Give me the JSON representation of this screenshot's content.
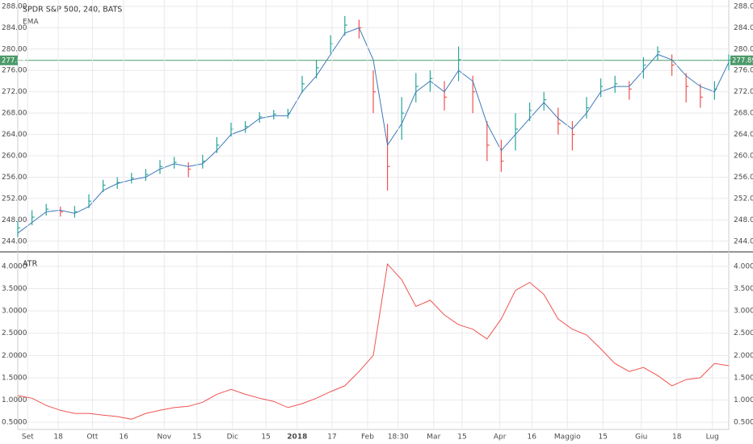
{
  "chart_data": [
    {
      "type": "ohlc",
      "title": "SPDR S&P 500, 240, BATS",
      "x": [
        0,
        2,
        4,
        6,
        8,
        10,
        12,
        14,
        16,
        18,
        20,
        22,
        24,
        26,
        28,
        30,
        32,
        34,
        36,
        38,
        40,
        42,
        44,
        46,
        48,
        50,
        52,
        54,
        56,
        58,
        60,
        62,
        64,
        66,
        68,
        70,
        72,
        74,
        76,
        78,
        80,
        82,
        84,
        86,
        88,
        90,
        92,
        94,
        96,
        98,
        100
      ],
      "bars": {
        "up_color": "#26a69a",
        "down_color": "#ef5350",
        "close": [
          246.5,
          248.5,
          250,
          249.5,
          249.5,
          251.5,
          254.5,
          255,
          255.8,
          256.5,
          258,
          258.8,
          257.5,
          259,
          262,
          265,
          265.5,
          267.3,
          267.8,
          268,
          273.5,
          276.5,
          281,
          284.5,
          284,
          272,
          258,
          268,
          273,
          274.5,
          271,
          278,
          272,
          262,
          259,
          265,
          268.5,
          270.5,
          266,
          264,
          269,
          273,
          273.5,
          272.5,
          277,
          279.5,
          277,
          273,
          271,
          272.5,
          277.9
        ],
        "high": [
          247.8,
          249.8,
          251,
          250.5,
          250.6,
          252.8,
          255.5,
          256,
          256.8,
          257.5,
          259.2,
          259.8,
          258.8,
          260.2,
          263.5,
          266.2,
          266.5,
          268.2,
          268.6,
          268.8,
          275,
          278,
          282.6,
          286.2,
          285.5,
          276,
          266,
          271,
          275.5,
          276,
          274,
          280.5,
          275,
          266.5,
          263,
          268,
          270,
          272,
          269,
          266.5,
          271,
          274.5,
          275,
          274,
          278.5,
          280.5,
          279,
          275.5,
          273.5,
          274,
          279
        ],
        "low": [
          244.8,
          247,
          248.8,
          248.6,
          248.4,
          250.2,
          253.2,
          253.8,
          254.8,
          255.3,
          256.6,
          257.6,
          256,
          257.6,
          260.5,
          263.6,
          264.3,
          266.2,
          266.8,
          267,
          271.8,
          274.5,
          279.2,
          282.5,
          282,
          268,
          253.5,
          263,
          270,
          272,
          268.5,
          274,
          268,
          259,
          257,
          261,
          266.5,
          268.5,
          264,
          261,
          267,
          271,
          271.8,
          270.5,
          274.5,
          277.8,
          275,
          270,
          269,
          270.5,
          276
        ]
      },
      "series": [
        {
          "name": "EMA",
          "color": "#3d7ab8",
          "values": [
            245.5,
            247.5,
            249.5,
            249.8,
            249.2,
            250.5,
            253.5,
            254.8,
            255.5,
            256,
            257.5,
            258.5,
            258,
            258.5,
            261,
            264,
            265,
            267,
            267.5,
            267.5,
            272,
            275,
            279,
            283,
            284,
            278,
            262,
            266,
            272,
            274,
            272,
            276,
            274,
            266,
            261,
            264,
            267,
            270,
            267,
            265,
            268,
            272,
            273,
            273,
            276,
            279,
            278,
            275,
            273,
            272,
            277.5
          ]
        }
      ],
      "last_value": {
        "value": 277.89,
        "label": "277.89",
        "color": "#4c9a6a"
      },
      "xlim": [
        0,
        100
      ],
      "ylim": [
        242.3,
        289.2
      ],
      "yticks": [
        {
          "value": 244,
          "label": "244.00"
        },
        {
          "value": 248,
          "label": "248.00"
        },
        {
          "value": 252,
          "label": "252.00"
        },
        {
          "value": 256,
          "label": "256.00"
        },
        {
          "value": 260,
          "label": "260.00"
        },
        {
          "value": 264,
          "label": "264.00"
        },
        {
          "value": 268,
          "label": "268.00"
        },
        {
          "value": 272,
          "label": "272.00"
        },
        {
          "value": 276,
          "label": "276.00"
        },
        {
          "value": 280,
          "label": "280.00"
        },
        {
          "value": 284,
          "label": "284.00"
        },
        {
          "value": 288,
          "label": "288.00"
        }
      ],
      "grid": true
    },
    {
      "type": "line",
      "title": "ATR",
      "x": [
        0,
        2,
        4,
        6,
        8,
        10,
        12,
        14,
        16,
        18,
        20,
        22,
        24,
        26,
        28,
        30,
        32,
        34,
        36,
        38,
        40,
        42,
        44,
        46,
        48,
        50,
        52,
        54,
        56,
        58,
        60,
        62,
        64,
        66,
        68,
        70,
        72,
        74,
        76,
        78,
        80,
        82,
        84,
        86,
        88,
        90,
        92,
        94,
        96,
        98,
        100
      ],
      "series": [
        {
          "color": "#ef5350",
          "values": [
            1.1,
            1.04,
            0.88,
            0.77,
            0.7,
            0.7,
            0.66,
            0.63,
            0.57,
            0.7,
            0.77,
            0.83,
            0.86,
            0.95,
            1.13,
            1.24,
            1.13,
            1.04,
            0.97,
            0.83,
            0.92,
            1.04,
            1.19,
            1.32,
            1.64,
            2.0,
            4.05,
            3.7,
            3.1,
            3.24,
            2.91,
            2.69,
            2.59,
            2.37,
            2.82,
            3.46,
            3.64,
            3.37,
            2.82,
            2.59,
            2.46,
            2.15,
            1.82,
            1.64,
            1.73,
            1.55,
            1.32,
            1.46,
            1.5,
            1.82,
            1.77
          ]
        }
      ],
      "xlim": [
        0,
        100
      ],
      "ylim": [
        0.34,
        4.27
      ],
      "yticks": [
        {
          "value": 0.5,
          "label": "0.5000"
        },
        {
          "value": 1,
          "label": "1.0000"
        },
        {
          "value": 1.5,
          "label": "1.5000"
        },
        {
          "value": 2,
          "label": "2.0000"
        },
        {
          "value": 2.5,
          "label": "2.5000"
        },
        {
          "value": 3,
          "label": "3.0000"
        },
        {
          "value": 3.5,
          "label": "3.5000"
        },
        {
          "value": 4,
          "label": "4.0000"
        }
      ],
      "xticks": [
        {
          "value": 1.4,
          "label": "Set"
        },
        {
          "value": 5.7,
          "label": "18"
        },
        {
          "value": 10.5,
          "label": "Ott"
        },
        {
          "value": 14.9,
          "label": "16"
        },
        {
          "value": 20.6,
          "label": "Nov"
        },
        {
          "value": 25.2,
          "label": "15"
        },
        {
          "value": 30.2,
          "label": "Dic"
        },
        {
          "value": 34.9,
          "label": "15"
        },
        {
          "value": 39.3,
          "label": "2018"
        },
        {
          "value": 44.2,
          "label": "17"
        },
        {
          "value": 49.2,
          "label": "Feb"
        },
        {
          "value": 53.5,
          "label": "18:30"
        },
        {
          "value": 58.5,
          "label": "Mar"
        },
        {
          "value": 62.5,
          "label": "15"
        },
        {
          "value": 67.8,
          "label": "Apr"
        },
        {
          "value": 72.3,
          "label": "16"
        },
        {
          "value": 77.3,
          "label": "Maggio"
        },
        {
          "value": 82.3,
          "label": "15"
        },
        {
          "value": 87.7,
          "label": "Giu"
        },
        {
          "value": 92.7,
          "label": "18"
        },
        {
          "value": 97.7,
          "label": "Lug"
        }
      ],
      "grid": true
    }
  ]
}
